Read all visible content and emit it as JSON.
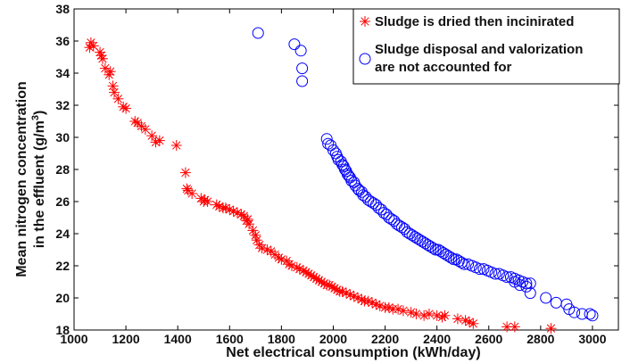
{
  "chart_data": {
    "type": "scatter",
    "xlabel": "Net electrical consumption (kWh/day)",
    "ylabel_line1": "Mean nitrogen concentration",
    "ylabel_line2_main": "in the effluent (g/m",
    "ylabel_line2_sup": "3",
    "ylabel_line2_end": ")",
    "xlim": [
      1000,
      3100
    ],
    "ylim": [
      18,
      38
    ],
    "xticks": [
      1000,
      1200,
      1400,
      1600,
      1800,
      2000,
      2200,
      2400,
      2600,
      2800,
      3000
    ],
    "yticks": [
      18,
      20,
      22,
      24,
      26,
      28,
      30,
      32,
      34,
      36,
      38
    ],
    "grid": false,
    "legend_position": "top-right",
    "series": [
      {
        "name": "Sludge is dried then incinirated",
        "marker": "asterisk",
        "color": "#ff0000",
        "points": [
          [
            1065,
            35.9
          ],
          [
            1060,
            35.6
          ],
          [
            1075,
            35.7
          ],
          [
            1100,
            35.3
          ],
          [
            1110,
            34.9
          ],
          [
            1105,
            35.1
          ],
          [
            1120,
            34.3
          ],
          [
            1140,
            34.1
          ],
          [
            1135,
            33.9
          ],
          [
            1150,
            33.2
          ],
          [
            1155,
            32.8
          ],
          [
            1170,
            32.4
          ],
          [
            1190,
            31.9
          ],
          [
            1200,
            31.8
          ],
          [
            1235,
            31.0
          ],
          [
            1245,
            30.9
          ],
          [
            1260,
            30.7
          ],
          [
            1275,
            30.5
          ],
          [
            1300,
            30.1
          ],
          [
            1315,
            29.7
          ],
          [
            1330,
            29.8
          ],
          [
            1395,
            29.5
          ],
          [
            1430,
            27.8
          ],
          [
            1435,
            26.8
          ],
          [
            1440,
            26.7
          ],
          [
            1455,
            26.5
          ],
          [
            1490,
            26.2
          ],
          [
            1500,
            26.0
          ],
          [
            1505,
            26.1
          ],
          [
            1515,
            26.0
          ],
          [
            1550,
            25.8
          ],
          [
            1560,
            25.7
          ],
          [
            1575,
            25.6
          ],
          [
            1585,
            25.6
          ],
          [
            1600,
            25.5
          ],
          [
            1615,
            25.4
          ],
          [
            1630,
            25.3
          ],
          [
            1645,
            25.2
          ],
          [
            1655,
            25.1
          ],
          [
            1665,
            24.8
          ],
          [
            1670,
            24.9
          ],
          [
            1675,
            24.6
          ],
          [
            1690,
            24.2
          ],
          [
            1700,
            23.9
          ],
          [
            1705,
            23.6
          ],
          [
            1715,
            23.3
          ],
          [
            1725,
            23.1
          ],
          [
            1745,
            23.0
          ],
          [
            1760,
            22.9
          ],
          [
            1775,
            22.7
          ],
          [
            1790,
            22.5
          ],
          [
            1800,
            22.4
          ],
          [
            1820,
            22.3
          ],
          [
            1830,
            22.1
          ],
          [
            1840,
            22.0
          ],
          [
            1860,
            21.9
          ],
          [
            1870,
            21.8
          ],
          [
            1885,
            21.7
          ],
          [
            1895,
            21.6
          ],
          [
            1905,
            21.5
          ],
          [
            1915,
            21.4
          ],
          [
            1925,
            21.3
          ],
          [
            1935,
            21.2
          ],
          [
            1945,
            21.1
          ],
          [
            1955,
            21.0
          ],
          [
            1965,
            20.9
          ],
          [
            1975,
            20.8
          ],
          [
            1985,
            20.8
          ],
          [
            1995,
            20.7
          ],
          [
            2005,
            20.6
          ],
          [
            2015,
            20.5
          ],
          [
            2025,
            20.4
          ],
          [
            2035,
            20.4
          ],
          [
            2050,
            20.3
          ],
          [
            2065,
            20.2
          ],
          [
            2080,
            20.1
          ],
          [
            2095,
            20.0
          ],
          [
            2110,
            19.9
          ],
          [
            2120,
            19.8
          ],
          [
            2135,
            19.8
          ],
          [
            2150,
            19.7
          ],
          [
            2165,
            19.6
          ],
          [
            2180,
            19.5
          ],
          [
            2200,
            19.4
          ],
          [
            2215,
            19.4
          ],
          [
            2230,
            19.3
          ],
          [
            2250,
            19.3
          ],
          [
            2270,
            19.2
          ],
          [
            2300,
            19.1
          ],
          [
            2320,
            19.0
          ],
          [
            2350,
            18.9
          ],
          [
            2370,
            19.0
          ],
          [
            2400,
            18.9
          ],
          [
            2420,
            18.8
          ],
          [
            2430,
            18.9
          ],
          [
            2480,
            18.7
          ],
          [
            2510,
            18.6
          ],
          [
            2525,
            18.5
          ],
          [
            2540,
            18.4
          ],
          [
            2670,
            18.2
          ],
          [
            2700,
            18.2
          ],
          [
            2840,
            18.1
          ]
        ]
      },
      {
        "name": "Sludge disposal and valorization are not accounted for",
        "legend_line1": "Sludge disposal and valorization",
        "legend_line2": "are not accounted for",
        "marker": "circle",
        "color": "#0000ff",
        "points": [
          [
            1710,
            36.5
          ],
          [
            1850,
            35.8
          ],
          [
            1875,
            35.4
          ],
          [
            1880,
            34.3
          ],
          [
            1880,
            33.5
          ],
          [
            1975,
            29.9
          ],
          [
            1980,
            29.6
          ],
          [
            1990,
            29.5
          ],
          [
            2000,
            29.2
          ],
          [
            2010,
            29.0
          ],
          [
            2015,
            28.8
          ],
          [
            2020,
            28.6
          ],
          [
            2030,
            28.5
          ],
          [
            2035,
            28.3
          ],
          [
            2040,
            28.2
          ],
          [
            2045,
            28.0
          ],
          [
            2050,
            27.9
          ],
          [
            2055,
            27.7
          ],
          [
            2060,
            27.6
          ],
          [
            2065,
            27.5
          ],
          [
            2070,
            27.3
          ],
          [
            2080,
            27.2
          ],
          [
            2085,
            27.0
          ],
          [
            2095,
            26.8
          ],
          [
            2100,
            26.7
          ],
          [
            2110,
            26.6
          ],
          [
            2115,
            26.4
          ],
          [
            2125,
            26.3
          ],
          [
            2135,
            26.1
          ],
          [
            2145,
            26.0
          ],
          [
            2155,
            25.9
          ],
          [
            2165,
            25.8
          ],
          [
            2175,
            25.6
          ],
          [
            2185,
            25.5
          ],
          [
            2195,
            25.3
          ],
          [
            2205,
            25.2
          ],
          [
            2215,
            25.0
          ],
          [
            2225,
            24.9
          ],
          [
            2235,
            24.8
          ],
          [
            2245,
            24.6
          ],
          [
            2255,
            24.5
          ],
          [
            2265,
            24.4
          ],
          [
            2275,
            24.3
          ],
          [
            2285,
            24.1
          ],
          [
            2295,
            24.0
          ],
          [
            2305,
            23.9
          ],
          [
            2315,
            23.8
          ],
          [
            2325,
            23.7
          ],
          [
            2335,
            23.6
          ],
          [
            2345,
            23.5
          ],
          [
            2355,
            23.4
          ],
          [
            2365,
            23.3
          ],
          [
            2375,
            23.2
          ],
          [
            2385,
            23.1
          ],
          [
            2395,
            23.0
          ],
          [
            2405,
            23.0
          ],
          [
            2415,
            22.9
          ],
          [
            2425,
            22.8
          ],
          [
            2435,
            22.7
          ],
          [
            2445,
            22.6
          ],
          [
            2455,
            22.5
          ],
          [
            2465,
            22.4
          ],
          [
            2475,
            22.4
          ],
          [
            2485,
            22.3
          ],
          [
            2495,
            22.2
          ],
          [
            2505,
            22.1
          ],
          [
            2520,
            22.1
          ],
          [
            2535,
            22.0
          ],
          [
            2550,
            21.9
          ],
          [
            2565,
            21.8
          ],
          [
            2580,
            21.8
          ],
          [
            2595,
            21.7
          ],
          [
            2610,
            21.6
          ],
          [
            2625,
            21.5
          ],
          [
            2640,
            21.5
          ],
          [
            2655,
            21.4
          ],
          [
            2670,
            21.3
          ],
          [
            2685,
            21.3
          ],
          [
            2700,
            21.2
          ],
          [
            2715,
            21.1
          ],
          [
            2730,
            21.0
          ],
          [
            2745,
            20.9
          ],
          [
            2760,
            20.9
          ],
          [
            2700,
            21.0
          ],
          [
            2720,
            20.8
          ],
          [
            2745,
            20.7
          ],
          [
            2760,
            20.3
          ],
          [
            2820,
            20.0
          ],
          [
            2860,
            19.7
          ],
          [
            2900,
            19.6
          ],
          [
            2910,
            19.3
          ],
          [
            2930,
            19.1
          ],
          [
            2960,
            19.0
          ],
          [
            2990,
            19.0
          ],
          [
            3000,
            18.9
          ]
        ]
      }
    ]
  }
}
